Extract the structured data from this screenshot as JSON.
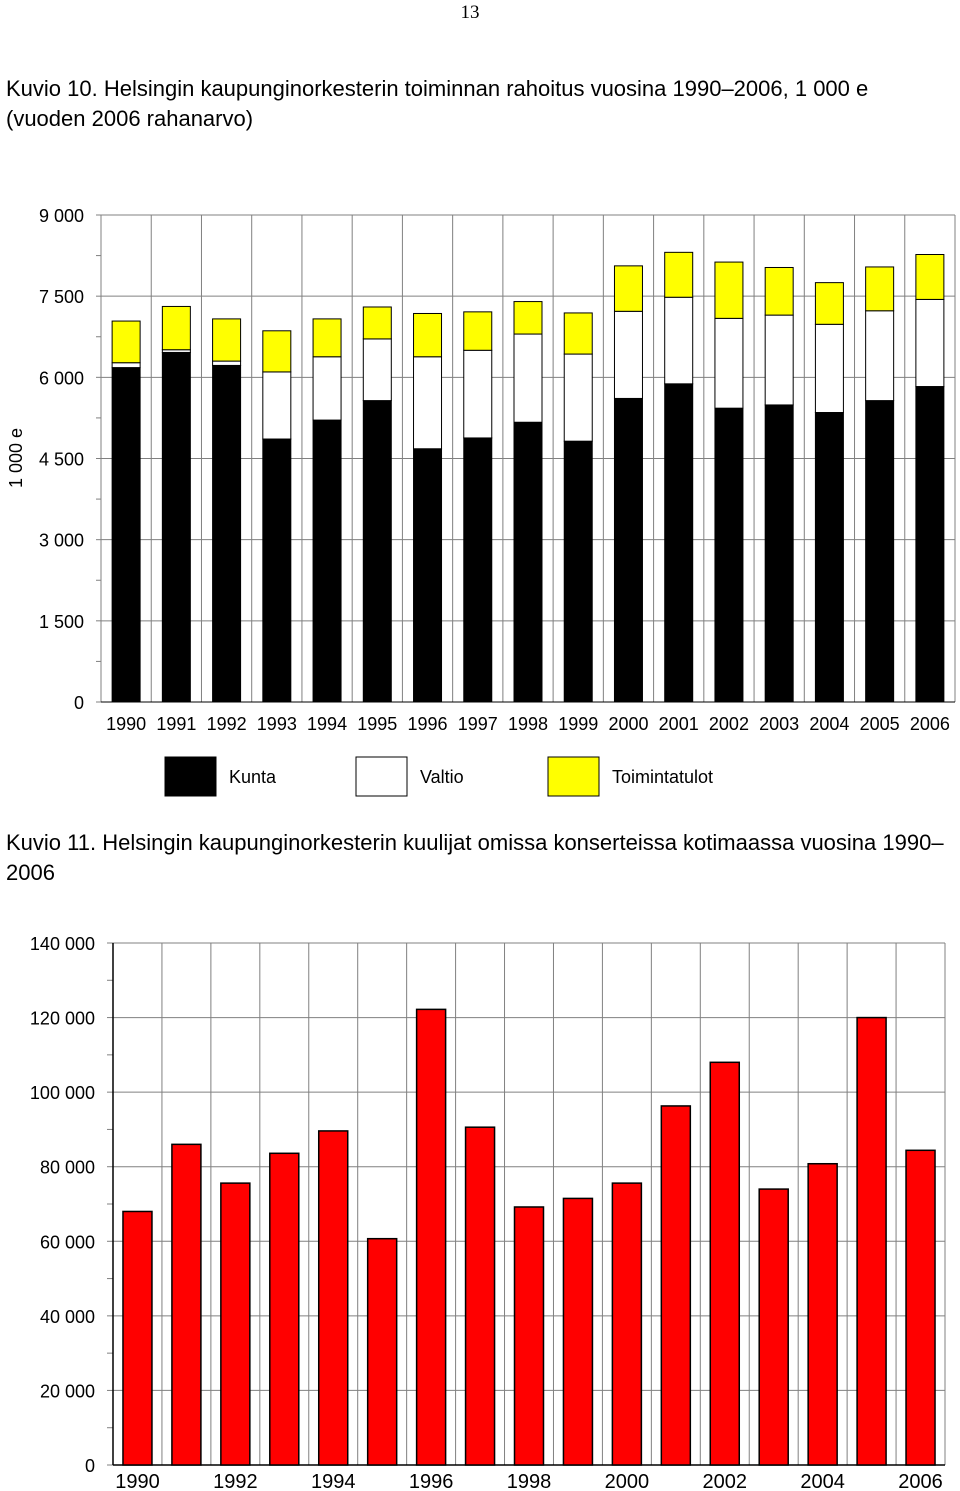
{
  "page_number": "13",
  "chart_data": [
    {
      "type": "bar",
      "stacked": true,
      "title": "Kuvio 10. Helsingin kaupunginorkesterin toiminnan rahoitus vuosina 1990–2006, 1 000 e (vuoden 2006 rahanarvo)",
      "ylabel": "1 000 e",
      "xlabel": "",
      "ylim": [
        0,
        9000
      ],
      "ytick_labels": [
        "0",
        "1 500",
        "3 000",
        "4 500",
        "6 000",
        "7 500",
        "9 000"
      ],
      "ytick_values": [
        0,
        1500,
        3000,
        4500,
        6000,
        7500,
        9000
      ],
      "grid": true,
      "legend_position": "bottom",
      "categories": [
        "1990",
        "1991",
        "1992",
        "1993",
        "1994",
        "1995",
        "1996",
        "1997",
        "1998",
        "1999",
        "2000",
        "2001",
        "2002",
        "2003",
        "2004",
        "2005",
        "2006"
      ],
      "series": [
        {
          "name": "Kunta",
          "color": "#000000",
          "values": [
            6180,
            6460,
            6220,
            4860,
            5210,
            5570,
            4680,
            4880,
            5170,
            4820,
            5610,
            5880,
            5430,
            5490,
            5350,
            5570,
            5830
          ]
        },
        {
          "name": "Valtio",
          "color": "#ffffff",
          "values": [
            90,
            50,
            80,
            1240,
            1170,
            1140,
            1700,
            1620,
            1630,
            1610,
            1610,
            1600,
            1660,
            1660,
            1630,
            1660,
            1610
          ]
        },
        {
          "name": "Toimintatulot",
          "color": "#ffff00",
          "values": [
            770,
            800,
            780,
            760,
            700,
            590,
            800,
            710,
            600,
            760,
            840,
            830,
            1040,
            880,
            770,
            810,
            830
          ]
        }
      ]
    },
    {
      "type": "bar",
      "title": "Kuvio 11. Helsingin kaupunginorkesterin kuulijat omissa konserteissa kotimaassa vuosina 1990–2006",
      "xlabel": "",
      "ylabel": "",
      "ylim": [
        0,
        140000
      ],
      "ytick_labels": [
        "0",
        "20 000",
        "40 000",
        "60 000",
        "80 000",
        "100 000",
        "120 000",
        "140 000"
      ],
      "ytick_values": [
        0,
        20000,
        40000,
        60000,
        80000,
        100000,
        120000,
        140000
      ],
      "grid": true,
      "legend_position": "none",
      "color": "#ff0000",
      "categories": [
        "1990",
        "1991",
        "1992",
        "1993",
        "1994",
        "1995",
        "1996",
        "1997",
        "1998",
        "1999",
        "2000",
        "2001",
        "2002",
        "2003",
        "2004",
        "2005",
        "2006"
      ],
      "xtick_labels_shown": [
        "1990",
        "1992",
        "1994",
        "1996",
        "1998",
        "2000",
        "2002",
        "2004",
        "2006"
      ],
      "values": [
        68000,
        86000,
        75600,
        83600,
        89600,
        60700,
        122200,
        90600,
        69200,
        71500,
        75600,
        96300,
        108000,
        74000,
        80800,
        120000,
        84400
      ]
    }
  ]
}
